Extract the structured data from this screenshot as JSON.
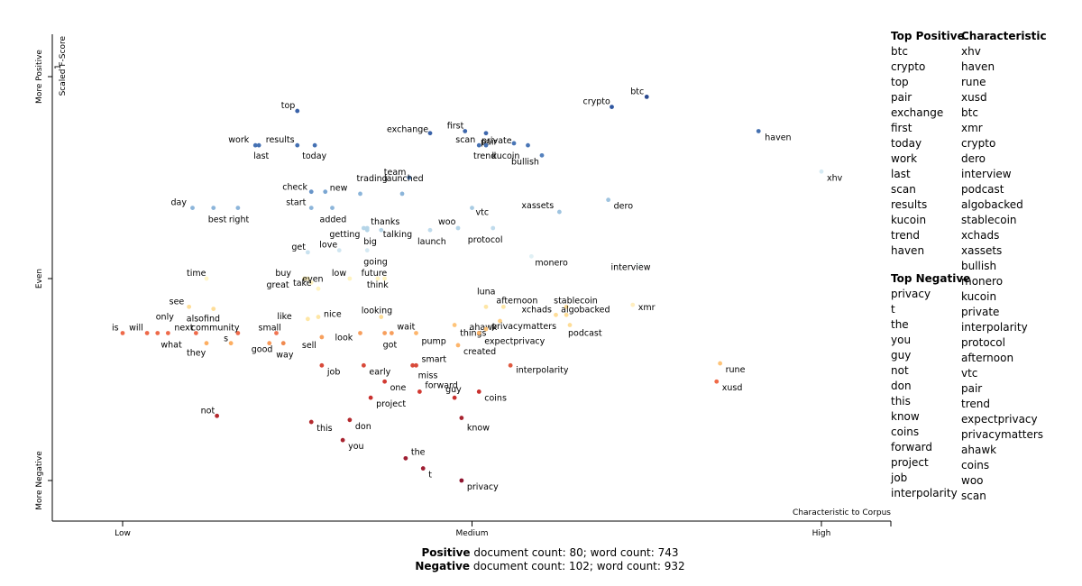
{
  "chart_data": {
    "type": "scatter",
    "xlabel": "Characteristic to Corpus",
    "ylabel": "Scaled F-Score",
    "x_ticks": [
      "Low",
      "Medium",
      "High"
    ],
    "y_ticks": [
      "More Positive",
      "Even",
      "More Negative"
    ],
    "y_tick_marks": [
      "1",
      "0",
      "-1"
    ],
    "xlim": [
      -0.1,
      1.1
    ],
    "ylim": [
      -1.2,
      1.2
    ],
    "points": [
      {
        "term": "btc",
        "x": 0.75,
        "y": 0.9,
        "color": "#2b4a8f",
        "dx": -18,
        "dy": -3
      },
      {
        "term": "crypto",
        "x": 0.7,
        "y": 0.85,
        "color": "#2f56a0",
        "dx": -32,
        "dy": -3
      },
      {
        "term": "haven",
        "x": 0.91,
        "y": 0.73,
        "color": "#4470b0",
        "dx": 7,
        "dy": 10
      },
      {
        "term": "xhv",
        "x": 1.0,
        "y": 0.53,
        "color": "#d6eaf3",
        "dx": 6,
        "dy": 10
      },
      {
        "term": "top",
        "x": 0.25,
        "y": 0.83,
        "color": "#3a62a8",
        "dx": -18,
        "dy": -3
      },
      {
        "term": "exchange",
        "x": 0.44,
        "y": 0.72,
        "color": "#3a62a8",
        "dx": -48,
        "dy": -1
      },
      {
        "term": "first",
        "x": 0.49,
        "y": 0.73,
        "color": "#3e67ac",
        "dx": -20,
        "dy": -3
      },
      {
        "term": "pair",
        "x": 0.52,
        "y": 0.72,
        "color": "#3e67ac",
        "dx": -6,
        "dy": 13
      },
      {
        "term": "work",
        "x": 0.19,
        "y": 0.66,
        "color": "#4571b3",
        "dx": -30,
        "dy": -3
      },
      {
        "term": "last",
        "x": 0.195,
        "y": 0.66,
        "color": "#4571b3",
        "dx": -6,
        "dy": 15
      },
      {
        "term": "results",
        "x": 0.25,
        "y": 0.66,
        "color": "#4571b3",
        "dx": -35,
        "dy": -3
      },
      {
        "term": "today",
        "x": 0.275,
        "y": 0.66,
        "color": "#4571b3",
        "dx": -14,
        "dy": 15
      },
      {
        "term": "scan",
        "x": 0.51,
        "y": 0.66,
        "color": "#4571b3",
        "dx": -26,
        "dy": -3
      },
      {
        "term": "trend",
        "x": 0.52,
        "y": 0.66,
        "color": "#4571b3",
        "dx": -14,
        "dy": 15
      },
      {
        "term": "private",
        "x": 0.56,
        "y": 0.67,
        "color": "#4a76b6",
        "dx": -36,
        "dy": 0
      },
      {
        "term": "kucoin",
        "x": 0.58,
        "y": 0.66,
        "color": "#4a76b6",
        "dx": -40,
        "dy": 15
      },
      {
        "term": "bullish",
        "x": 0.6,
        "y": 0.61,
        "color": "#5581bd",
        "dx": -34,
        "dy": 10
      },
      {
        "term": "team",
        "x": 0.41,
        "y": 0.5,
        "color": "#5a87c0",
        "dx": -28,
        "dy": -3
      },
      {
        "term": "check",
        "x": 0.27,
        "y": 0.43,
        "color": "#6794c8",
        "dx": -32,
        "dy": -2
      },
      {
        "term": "new",
        "x": 0.29,
        "y": 0.43,
        "color": "#7aa6d2",
        "dx": 5,
        "dy": -1
      },
      {
        "term": "trading",
        "x": 0.34,
        "y": 0.42,
        "color": "#8cb5da",
        "dx": -4,
        "dy": -14
      },
      {
        "term": "launched",
        "x": 0.4,
        "y": 0.42,
        "color": "#8cb5da",
        "dx": -20,
        "dy": -14
      },
      {
        "term": "start",
        "x": 0.27,
        "y": 0.35,
        "color": "#8cb5da",
        "dx": -28,
        "dy": -3
      },
      {
        "term": "added",
        "x": 0.3,
        "y": 0.35,
        "color": "#8cb5da",
        "dx": -14,
        "dy": 16
      },
      {
        "term": "day",
        "x": 0.1,
        "y": 0.35,
        "color": "#8cb5da",
        "dx": -24,
        "dy": -3
      },
      {
        "term": "best",
        "x": 0.13,
        "y": 0.35,
        "color": "#8cb5da",
        "dx": -6,
        "dy": 16
      },
      {
        "term": "right",
        "x": 0.165,
        "y": 0.35,
        "color": "#8cb5da",
        "dx": -10,
        "dy": 16
      },
      {
        "term": "xassets",
        "x": 0.625,
        "y": 0.33,
        "color": "#9fc4e0",
        "dx": -42,
        "dy": -4
      },
      {
        "term": "dero",
        "x": 0.695,
        "y": 0.39,
        "color": "#9fc4e0",
        "dx": 6,
        "dy": 10
      },
      {
        "term": "vtc",
        "x": 0.5,
        "y": 0.35,
        "color": "#a8cbe3",
        "dx": 4,
        "dy": 8
      },
      {
        "term": "woo",
        "x": 0.48,
        "y": 0.25,
        "color": "#b5d5e8",
        "dx": -22,
        "dy": -4
      },
      {
        "term": "thanks",
        "x": 0.35,
        "y": 0.25,
        "color": "#b5d5e8",
        "dx": 4,
        "dy": -4
      },
      {
        "term": "getting",
        "x": 0.345,
        "y": 0.25,
        "color": "#b5d5e8",
        "dx": -38,
        "dy": 10
      },
      {
        "term": "big",
        "x": 0.35,
        "y": 0.24,
        "color": "#b5d5e8",
        "dx": -4,
        "dy": 16
      },
      {
        "term": "talking",
        "x": 0.37,
        "y": 0.24,
        "color": "#b5d5e8",
        "dx": 2,
        "dy": 8
      },
      {
        "term": "launch",
        "x": 0.44,
        "y": 0.24,
        "color": "#bfdbec",
        "dx": -14,
        "dy": 16
      },
      {
        "term": "protocol",
        "x": 0.53,
        "y": 0.25,
        "color": "#bfdbec",
        "dx": -28,
        "dy": 16
      },
      {
        "term": "get",
        "x": 0.265,
        "y": 0.13,
        "color": "#c9e2ef",
        "dx": -18,
        "dy": -3
      },
      {
        "term": "love",
        "x": 0.31,
        "y": 0.14,
        "color": "#d0e6f1",
        "dx": -22,
        "dy": -3
      },
      {
        "term": "going",
        "x": 0.35,
        "y": 0.14,
        "color": "#d6eaf3",
        "dx": -4,
        "dy": 16
      },
      {
        "term": "monero",
        "x": 0.585,
        "y": 0.11,
        "color": "#e0f0f5",
        "dx": 4,
        "dy": 10
      },
      {
        "term": "interview",
        "x": 0.74,
        "y": 0.07,
        "color": "#eef7f8",
        "dx": -32,
        "dy": 6
      },
      {
        "term": "time",
        "x": 0.12,
        "y": 0.0,
        "color": "#fff5c8",
        "dx": -22,
        "dy": -3
      },
      {
        "term": "buy",
        "x": 0.265,
        "y": 0.0,
        "color": "#fff3c0",
        "dx": -36,
        "dy": -3
      },
      {
        "term": "great",
        "x": 0.26,
        "y": 0.0,
        "color": "#fff3c0",
        "dx": -42,
        "dy": 10
      },
      {
        "term": "low",
        "x": 0.325,
        "y": 0.0,
        "color": "#fff3c0",
        "dx": -20,
        "dy": -3
      },
      {
        "term": "future",
        "x": 0.375,
        "y": 0.0,
        "color": "#fff3c0",
        "dx": -26,
        "dy": -3
      },
      {
        "term": "think",
        "x": 0.365,
        "y": 0.0,
        "color": "#fff3c0",
        "dx": -12,
        "dy": 10
      },
      {
        "term": "even",
        "x": 0.27,
        "y": -0.02,
        "color": "#fff3c0",
        "dx": -10,
        "dy": -1
      },
      {
        "term": "take",
        "x": 0.28,
        "y": -0.05,
        "color": "#fff3c0",
        "dx": -28,
        "dy": -3
      },
      {
        "term": "luna",
        "x": 0.52,
        "y": -0.14,
        "color": "#fee6a5",
        "dx": -10,
        "dy": -14
      },
      {
        "term": "afternoon",
        "x": 0.545,
        "y": -0.14,
        "color": "#fee6a5",
        "dx": -8,
        "dy": -4
      },
      {
        "term": "stablecoin",
        "x": 0.635,
        "y": -0.14,
        "color": "#fedd98",
        "dx": -14,
        "dy": -4
      },
      {
        "term": "xchads",
        "x": 0.62,
        "y": -0.18,
        "color": "#fedd98",
        "dx": -38,
        "dy": -3
      },
      {
        "term": "algobacked",
        "x": 0.635,
        "y": -0.18,
        "color": "#fedd98",
        "dx": -6,
        "dy": -3
      },
      {
        "term": "xmr",
        "x": 0.73,
        "y": -0.13,
        "color": "#ffeec0",
        "dx": 6,
        "dy": 6
      },
      {
        "term": "podcast",
        "x": 0.64,
        "y": -0.23,
        "color": "#fedd98",
        "dx": -2,
        "dy": 12
      },
      {
        "term": "see",
        "x": 0.095,
        "y": -0.14,
        "color": "#fedd98",
        "dx": -22,
        "dy": -3
      },
      {
        "term": "alsofind",
        "x": 0.13,
        "y": -0.15,
        "color": "#fedd98",
        "dx": -30,
        "dy": 14
      },
      {
        "term": "looking",
        "x": 0.37,
        "y": -0.19,
        "color": "#fedd98",
        "dx": -22,
        "dy": -4
      },
      {
        "term": "like",
        "x": 0.265,
        "y": -0.2,
        "color": "#fee6a5",
        "dx": -34,
        "dy": 0
      },
      {
        "term": "nice",
        "x": 0.28,
        "y": -0.19,
        "color": "#fee6a5",
        "dx": 6,
        "dy": 0
      },
      {
        "term": "ahawk",
        "x": 0.54,
        "y": -0.21,
        "color": "#fed088",
        "dx": -34,
        "dy": 10
      },
      {
        "term": "things",
        "x": 0.475,
        "y": -0.23,
        "color": "#fec47a",
        "dx": 6,
        "dy": 12
      },
      {
        "term": "privacymatters",
        "x": 0.52,
        "y": -0.25,
        "color": "#fec47a",
        "dx": 6,
        "dy": 0
      },
      {
        "term": "expectprivacy",
        "x": 0.51,
        "y": -0.27,
        "color": "#fdb56b",
        "dx": 6,
        "dy": 12
      },
      {
        "term": "pump",
        "x": 0.42,
        "y": -0.27,
        "color": "#fdb56b",
        "dx": 6,
        "dy": 12
      },
      {
        "term": "wait",
        "x": 0.385,
        "y": -0.27,
        "color": "#f79e5c",
        "dx": 6,
        "dy": -4
      },
      {
        "term": "look",
        "x": 0.34,
        "y": -0.27,
        "color": "#f79e5c",
        "dx": -28,
        "dy": 8
      },
      {
        "term": "got",
        "x": 0.375,
        "y": -0.27,
        "color": "#f79e5c",
        "dx": -2,
        "dy": 16
      },
      {
        "term": "sell",
        "x": 0.285,
        "y": -0.29,
        "color": "#f7a05e",
        "dx": -22,
        "dy": 12
      },
      {
        "term": "created",
        "x": 0.48,
        "y": -0.33,
        "color": "#fdb56b",
        "dx": 6,
        "dy": 10
      },
      {
        "term": "is",
        "x": 0.0,
        "y": -0.27,
        "color": "#ee6a4a",
        "dx": -12,
        "dy": -3
      },
      {
        "term": "will",
        "x": 0.035,
        "y": -0.27,
        "color": "#ee6a4a",
        "dx": -20,
        "dy": -3
      },
      {
        "term": "only",
        "x": 0.05,
        "y": -0.27,
        "color": "#ee6a4a",
        "dx": -2,
        "dy": -15
      },
      {
        "term": "what",
        "x": 0.065,
        "y": -0.27,
        "color": "#ee6a4a",
        "dx": -8,
        "dy": 16
      },
      {
        "term": "next",
        "x": 0.105,
        "y": -0.27,
        "color": "#ee6a4a",
        "dx": -24,
        "dy": -3
      },
      {
        "term": "community",
        "x": 0.165,
        "y": -0.27,
        "color": "#ee6a4a",
        "dx": -52,
        "dy": -3
      },
      {
        "term": "small",
        "x": 0.22,
        "y": -0.27,
        "color": "#f07452",
        "dx": -20,
        "dy": -3
      },
      {
        "term": "they",
        "x": 0.12,
        "y": -0.32,
        "color": "#fdae61",
        "dx": -22,
        "dy": 14
      },
      {
        "term": "s",
        "x": 0.155,
        "y": -0.32,
        "color": "#fdae61",
        "dx": -8,
        "dy": -2
      },
      {
        "term": "good",
        "x": 0.21,
        "y": -0.32,
        "color": "#f89a5a",
        "dx": -20,
        "dy": 10
      },
      {
        "term": "way",
        "x": 0.23,
        "y": -0.32,
        "color": "#f08a50",
        "dx": -8,
        "dy": 16
      },
      {
        "term": "rune",
        "x": 0.855,
        "y": -0.42,
        "color": "#fdc47a",
        "dx": 6,
        "dy": 10
      },
      {
        "term": "xusd",
        "x": 0.85,
        "y": -0.51,
        "color": "#f06a48",
        "dx": 6,
        "dy": 10
      },
      {
        "term": "interpolarity",
        "x": 0.555,
        "y": -0.43,
        "color": "#e05a40",
        "dx": 6,
        "dy": 8
      },
      {
        "term": "job",
        "x": 0.285,
        "y": -0.43,
        "color": "#d84a3a",
        "dx": 6,
        "dy": 10
      },
      {
        "term": "early",
        "x": 0.345,
        "y": -0.43,
        "color": "#d84a3a",
        "dx": 6,
        "dy": 10
      },
      {
        "term": "smart",
        "x": 0.42,
        "y": -0.43,
        "color": "#d84a3a",
        "dx": 6,
        "dy": -4
      },
      {
        "term": "miss",
        "x": 0.415,
        "y": -0.43,
        "color": "#d84a3a",
        "dx": 6,
        "dy": 14
      },
      {
        "term": "one",
        "x": 0.375,
        "y": -0.51,
        "color": "#d23a32",
        "dx": 6,
        "dy": 10
      },
      {
        "term": "forward",
        "x": 0.425,
        "y": -0.56,
        "color": "#d23a32",
        "dx": 6,
        "dy": -4
      },
      {
        "term": "coins",
        "x": 0.51,
        "y": -0.56,
        "color": "#c8302e",
        "dx": 6,
        "dy": 10
      },
      {
        "term": "project",
        "x": 0.355,
        "y": -0.59,
        "color": "#c8302e",
        "dx": 6,
        "dy": 10
      },
      {
        "term": "guy",
        "x": 0.475,
        "y": -0.59,
        "color": "#c8302e",
        "dx": -10,
        "dy": -6
      },
      {
        "term": "not",
        "x": 0.135,
        "y": -0.68,
        "color": "#b42a2e",
        "dx": -18,
        "dy": -3
      },
      {
        "term": "this",
        "x": 0.27,
        "y": -0.71,
        "color": "#b42a2e",
        "dx": 6,
        "dy": 10
      },
      {
        "term": "don",
        "x": 0.325,
        "y": -0.7,
        "color": "#b42a2e",
        "dx": 6,
        "dy": 10
      },
      {
        "term": "know",
        "x": 0.485,
        "y": -0.69,
        "color": "#a82430",
        "dx": 6,
        "dy": 14
      },
      {
        "term": "you",
        "x": 0.315,
        "y": -0.8,
        "color": "#a82430",
        "dx": 6,
        "dy": 10
      },
      {
        "term": "the",
        "x": 0.405,
        "y": -0.89,
        "color": "#9e1e32",
        "dx": 6,
        "dy": -4
      },
      {
        "term": "t",
        "x": 0.43,
        "y": -0.94,
        "color": "#9e1e32",
        "dx": 6,
        "dy": 10
      },
      {
        "term": "privacy",
        "x": 0.485,
        "y": -1.0,
        "color": "#8e1530",
        "dx": 6,
        "dy": 10
      }
    ]
  },
  "top_positive": {
    "title": "Top Positive",
    "items": [
      "btc",
      "crypto",
      "top",
      "pair",
      "exchange",
      "first",
      "today",
      "work",
      "last",
      "scan",
      "results",
      "kucoin",
      "trend",
      "haven"
    ]
  },
  "top_negative": {
    "title": "Top Negative",
    "items": [
      "privacy",
      "t",
      "the",
      "you",
      "guy",
      "not",
      "don",
      "this",
      "know",
      "coins",
      "forward",
      "project",
      "job",
      "interpolarity"
    ]
  },
  "characteristic": {
    "title": "Characteristic",
    "items": [
      "xhv",
      "haven",
      "rune",
      "xusd",
      "btc",
      "xmr",
      "crypto",
      "dero",
      "interview",
      "podcast",
      "algobacked",
      "stablecoin",
      "xchads",
      "xassets",
      "bullish",
      "monero",
      "kucoin",
      "private",
      "interpolarity",
      "protocol",
      "afternoon",
      "vtc",
      "pair",
      "trend",
      "expectprivacy",
      "privacymatters",
      "ahawk",
      "coins",
      "woo",
      "scan"
    ]
  },
  "footer": {
    "positive_label": "Positive",
    "positive_counts": "document count: 80; word count: 743",
    "negative_label": "Negative",
    "negative_counts": "document count: 102; word count: 932"
  }
}
